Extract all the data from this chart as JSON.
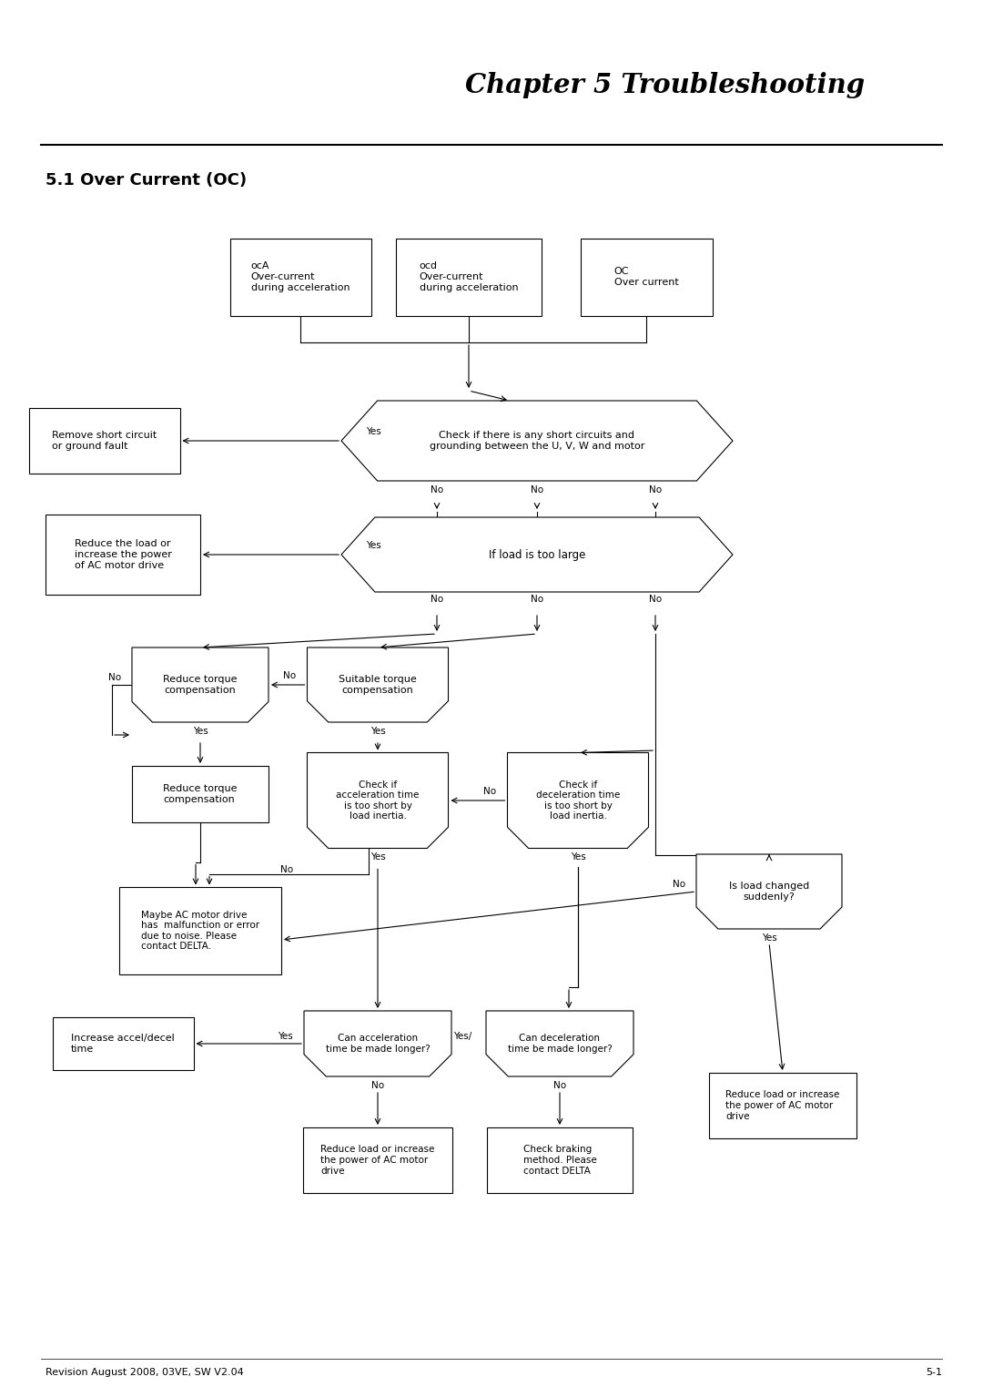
{
  "title": "Chapter 5 Troubleshooting",
  "section": "5.1 Over Current (OC)",
  "footer_left": "Revision August 2008, 03VE, SW V2.04",
  "footer_right": "5-1",
  "bg_color": "#ffffff",
  "text_color": "#000000"
}
